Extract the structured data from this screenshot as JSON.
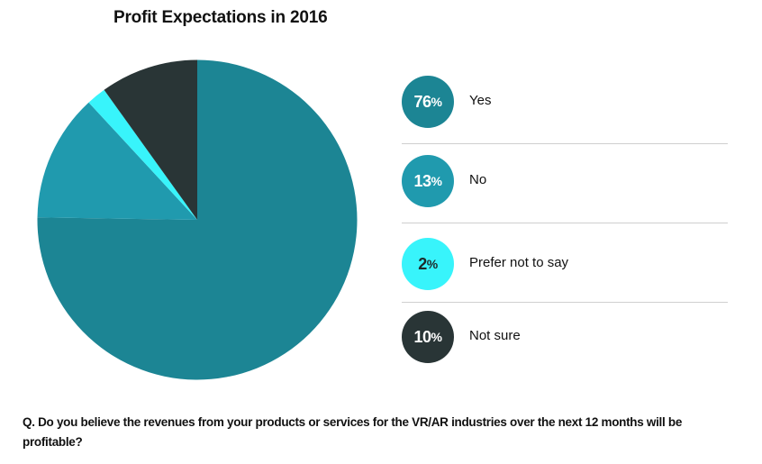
{
  "chart_data": {
    "type": "pie",
    "title": "Profit Expectations in 2016",
    "start_angle": "12 o'clock",
    "direction": "clockwise",
    "slices": [
      {
        "label": "Yes",
        "value": 76,
        "display": "76",
        "color": "#1c8594",
        "text_color": "#ffffff"
      },
      {
        "label": "No",
        "value": 13,
        "display": "13",
        "color": "#209aae",
        "text_color": "#ffffff"
      },
      {
        "label": "Prefer not to say",
        "value": 2,
        "display": "2",
        "color": "#38f4fb",
        "text_color": "#1e2a2a"
      },
      {
        "label": "Not sure",
        "value": 10,
        "display": "10",
        "color": "#293536",
        "text_color": "#ffffff"
      }
    ],
    "legend": "right",
    "unit": "%"
  },
  "question": "Q. Do you believe the revenues from your products or services for the VR/AR industries over the next 12 months will be profitable?"
}
